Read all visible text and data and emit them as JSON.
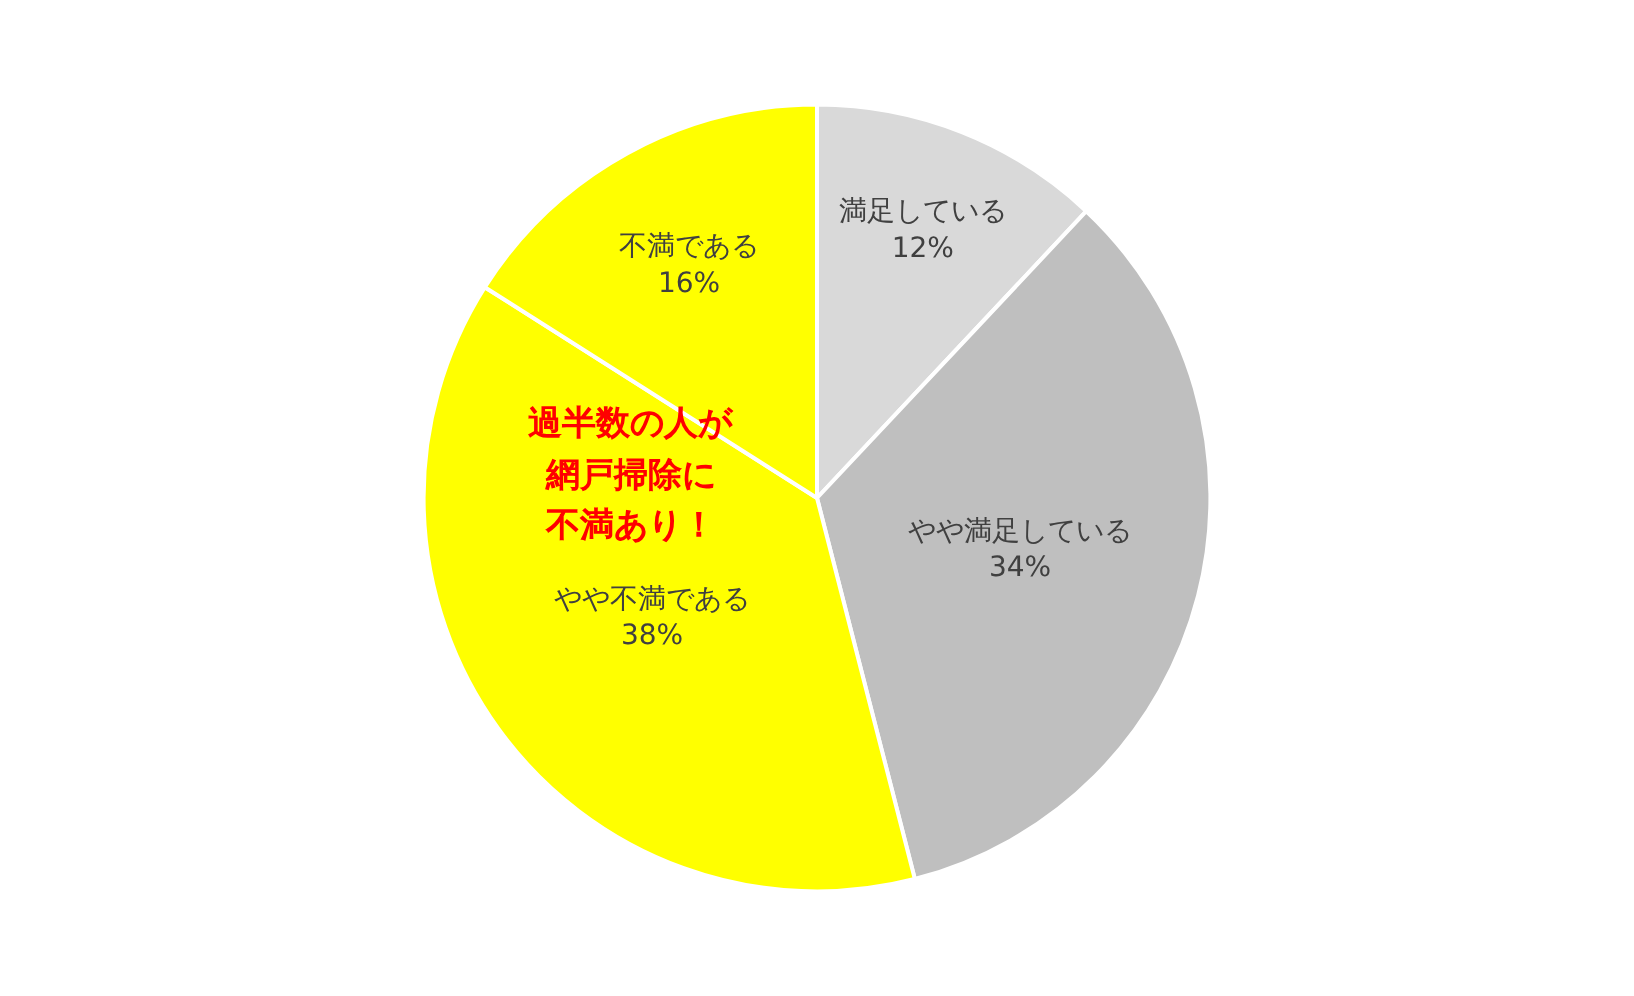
{
  "chart_data": {
    "type": "pie",
    "categories": [
      "満足している",
      "やや満足している",
      "やや不満である",
      "不満である"
    ],
    "values": [
      12,
      34,
      38,
      16
    ],
    "colors": [
      "#d9d9d9",
      "#bfbfbf",
      "#ffff00",
      "#ffff00"
    ],
    "value_labels": [
      "12%",
      "34%",
      "38%",
      "16%"
    ],
    "annotations": [
      "過半数の人が",
      "網戸掃除に",
      "不満あり！"
    ],
    "legend": false
  }
}
